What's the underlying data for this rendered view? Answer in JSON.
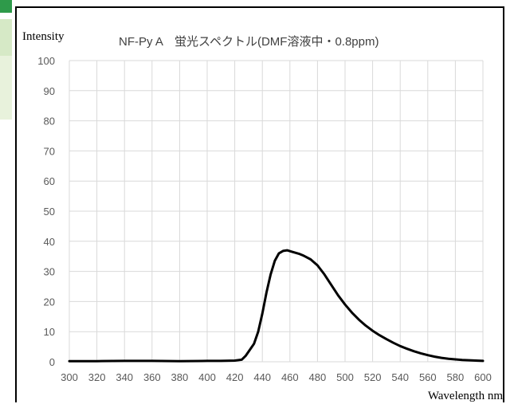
{
  "chart_data": {
    "type": "line",
    "title": "NF-Py A　蛍光スペクトル(DMF溶液中・0.8ppm)",
    "ylabel": "Intensity",
    "xlabel": "Wavelength nm",
    "xlim": [
      300,
      600
    ],
    "ylim": [
      0,
      100
    ],
    "x_ticks": [
      300,
      320,
      340,
      360,
      380,
      400,
      420,
      440,
      460,
      480,
      500,
      520,
      540,
      560,
      580,
      600
    ],
    "y_ticks": [
      0,
      10,
      20,
      30,
      40,
      50,
      60,
      70,
      80,
      90,
      100
    ],
    "grid": true,
    "line_color": "#000000",
    "series": [
      {
        "x": [
          300,
          320,
          340,
          360,
          380,
          400,
          410,
          420,
          425,
          428,
          431,
          434,
          437,
          440,
          443,
          446,
          449,
          452,
          455,
          458,
          461,
          464,
          467,
          470,
          475,
          480,
          485,
          490,
          495,
          500,
          505,
          510,
          515,
          520,
          525,
          530,
          535,
          540,
          545,
          550,
          555,
          560,
          565,
          570,
          575,
          580,
          585,
          590,
          595,
          600
        ],
        "y": [
          0.2,
          0.2,
          0.3,
          0.3,
          0.2,
          0.3,
          0.3,
          0.4,
          0.7,
          2.0,
          4.0,
          6.0,
          10.0,
          16.0,
          23.0,
          29.0,
          33.5,
          36.0,
          36.8,
          37.0,
          36.6,
          36.2,
          35.8,
          35.2,
          34.0,
          32.0,
          29.0,
          25.5,
          22.0,
          19.0,
          16.3,
          14.0,
          12.0,
          10.3,
          8.8,
          7.5,
          6.3,
          5.2,
          4.3,
          3.5,
          2.8,
          2.2,
          1.7,
          1.3,
          1.0,
          0.8,
          0.6,
          0.5,
          0.4,
          0.3
        ]
      }
    ]
  }
}
